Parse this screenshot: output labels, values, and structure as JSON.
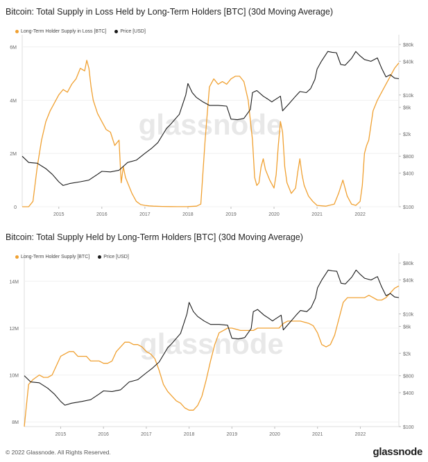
{
  "chart_data": [
    {
      "type": "line",
      "title": "Bitcoin: Total Supply in Loss Held by Long-Term Holders [BTC] (30d Moving Average)",
      "x_ticks": [
        "2015",
        "2016",
        "2017",
        "2018",
        "2019",
        "2020",
        "2021",
        "2022"
      ],
      "x_range": [
        2014.15,
        2022.9
      ],
      "left_axis": {
        "ticks": [
          0,
          2000000,
          4000000,
          6000000
        ],
        "tick_labels": [
          "0",
          "2M",
          "4M",
          "6M"
        ],
        "range": [
          0,
          6200000
        ]
      },
      "right_axis": {
        "scale": "log",
        "ticks": [
          100,
          400,
          800,
          2000,
          6000,
          10000,
          40000,
          80000
        ],
        "tick_labels": [
          "$100",
          "$400",
          "$800",
          "$2k",
          "$6k",
          "$10k",
          "$40k",
          "$80k"
        ],
        "range": [
          100,
          90000
        ]
      },
      "grid": true,
      "legend_position": "top-left",
      "watermark": "glassnode",
      "series": [
        {
          "name": "Long-Term Holder Supply in Loss [BTC]",
          "color": "#f0a030",
          "axis": "left",
          "x": [
            2014.15,
            2014.3,
            2014.4,
            2014.5,
            2014.6,
            2014.7,
            2014.8,
            2014.9,
            2015.0,
            2015.1,
            2015.2,
            2015.3,
            2015.4,
            2015.5,
            2015.6,
            2015.65,
            2015.7,
            2015.75,
            2015.8,
            2015.9,
            2016.0,
            2016.1,
            2016.2,
            2016.3,
            2016.4,
            2016.45,
            2016.5,
            2016.55,
            2016.6,
            2016.7,
            2016.8,
            2016.9,
            2017.0,
            2017.1,
            2017.2,
            2017.4,
            2017.6,
            2017.8,
            2018.0,
            2018.2,
            2018.3,
            2018.4,
            2018.5,
            2018.6,
            2018.7,
            2018.8,
            2018.9,
            2019.0,
            2019.1,
            2019.2,
            2019.3,
            2019.4,
            2019.5,
            2019.55,
            2019.6,
            2019.65,
            2019.7,
            2019.75,
            2019.8,
            2019.9,
            2020.0,
            2020.05,
            2020.1,
            2020.15,
            2020.2,
            2020.25,
            2020.3,
            2020.4,
            2020.5,
            2020.55,
            2020.6,
            2020.65,
            2020.7,
            2020.8,
            2020.9,
            2021.0,
            2021.2,
            2021.4,
            2021.5,
            2021.6,
            2021.7,
            2021.8,
            2021.9,
            2022.0,
            2022.05,
            2022.1,
            2022.15,
            2022.2,
            2022.3,
            2022.4,
            2022.5,
            2022.6,
            2022.7,
            2022.8,
            2022.9
          ],
          "values": [
            0,
            0,
            200000,
            1500000,
            2500000,
            3200000,
            3600000,
            3900000,
            4200000,
            4400000,
            4300000,
            4600000,
            4800000,
            5200000,
            5100000,
            5500000,
            5200000,
            4500000,
            4000000,
            3500000,
            3200000,
            2900000,
            2800000,
            2300000,
            2500000,
            900000,
            1500000,
            1100000,
            900000,
            500000,
            200000,
            80000,
            50000,
            30000,
            20000,
            10000,
            5000,
            3000,
            5000,
            20000,
            100000,
            2500000,
            4500000,
            4800000,
            4600000,
            4700000,
            4600000,
            4800000,
            4900000,
            4900000,
            4700000,
            4000000,
            2500000,
            1100000,
            800000,
            900000,
            1500000,
            1800000,
            1400000,
            1000000,
            700000,
            1200000,
            2300000,
            3200000,
            2800000,
            1500000,
            900000,
            500000,
            700000,
            1300000,
            1800000,
            1200000,
            800000,
            400000,
            200000,
            50000,
            20000,
            100000,
            500000,
            1000000,
            400000,
            100000,
            50000,
            200000,
            800000,
            2000000,
            2300000,
            2500000,
            3600000,
            4000000,
            4300000,
            4600000,
            4900000,
            5200000,
            5400000
          ]
        },
        {
          "name": "Price [USD]",
          "color": "#1a1a1a",
          "axis": "right",
          "x": [
            2014.15,
            2014.3,
            2014.5,
            2014.7,
            2014.85,
            2015.0,
            2015.1,
            2015.25,
            2015.5,
            2015.7,
            2015.9,
            2016.0,
            2016.2,
            2016.4,
            2016.6,
            2016.8,
            2017.0,
            2017.15,
            2017.3,
            2017.5,
            2017.6,
            2017.8,
            2017.95,
            2018.0,
            2018.1,
            2018.2,
            2018.35,
            2018.5,
            2018.7,
            2018.9,
            2019.0,
            2019.15,
            2019.3,
            2019.45,
            2019.5,
            2019.6,
            2019.75,
            2019.85,
            2019.95,
            2020.0,
            2020.15,
            2020.2,
            2020.35,
            2020.5,
            2020.6,
            2020.75,
            2020.85,
            2020.95,
            2021.0,
            2021.1,
            2021.25,
            2021.35,
            2021.45,
            2021.55,
            2021.65,
            2021.8,
            2021.9,
            2022.0,
            2022.1,
            2022.25,
            2022.4,
            2022.5,
            2022.6,
            2022.7,
            2022.8,
            2022.9
          ],
          "values": [
            800,
            620,
            600,
            480,
            380,
            280,
            240,
            260,
            280,
            300,
            380,
            430,
            420,
            450,
            620,
            680,
            900,
            1100,
            1400,
            2500,
            3000,
            4500,
            10000,
            16000,
            11000,
            9000,
            7500,
            6500,
            6500,
            6300,
            3700,
            3600,
            3800,
            5500,
            11000,
            12000,
            9500,
            8500,
            7500,
            8000,
            9500,
            5200,
            7000,
            9500,
            11500,
            11000,
            13000,
            19000,
            29000,
            40000,
            60000,
            58000,
            57000,
            35000,
            34000,
            45000,
            60000,
            50000,
            43000,
            40000,
            46000,
            30000,
            21000,
            23000,
            20000,
            19500
          ]
        }
      ]
    },
    {
      "type": "line",
      "title": "Bitcoin: Total Supply Held by Long-Term Holders [BTC] (30d Moving Average)",
      "x_ticks": [
        "2015",
        "2016",
        "2017",
        "2018",
        "2019",
        "2020",
        "2021",
        "2022"
      ],
      "x_range": [
        2014.15,
        2022.9
      ],
      "left_axis": {
        "ticks": [
          8000000,
          10000000,
          12000000,
          14000000
        ],
        "tick_labels": [
          "8M",
          "10M",
          "12M",
          "14M"
        ],
        "range": [
          7800000,
          14900000
        ]
      },
      "right_axis": {
        "scale": "log",
        "ticks": [
          100,
          400,
          800,
          2000,
          6000,
          10000,
          40000,
          80000
        ],
        "tick_labels": [
          "$100",
          "$400",
          "$800",
          "$2k",
          "$6k",
          "$10k",
          "$40k",
          "$80k"
        ],
        "range": [
          100,
          90000
        ]
      },
      "grid": true,
      "legend_position": "top-left",
      "watermark": "glassnode",
      "series": [
        {
          "name": "Long-Term Holder Supply [BTC]",
          "color": "#f0a030",
          "axis": "left",
          "x": [
            2014.15,
            2014.25,
            2014.35,
            2014.5,
            2014.6,
            2014.7,
            2014.8,
            2014.9,
            2015.0,
            2015.1,
            2015.2,
            2015.3,
            2015.4,
            2015.5,
            2015.6,
            2015.7,
            2015.8,
            2015.9,
            2016.0,
            2016.1,
            2016.2,
            2016.3,
            2016.4,
            2016.5,
            2016.6,
            2016.7,
            2016.8,
            2016.9,
            2017.0,
            2017.1,
            2017.2,
            2017.3,
            2017.4,
            2017.5,
            2017.6,
            2017.7,
            2017.8,
            2017.9,
            2018.0,
            2018.1,
            2018.2,
            2018.3,
            2018.4,
            2018.5,
            2018.6,
            2018.7,
            2018.8,
            2018.9,
            2019.0,
            2019.2,
            2019.4,
            2019.5,
            2019.6,
            2019.8,
            2019.9,
            2020.0,
            2020.1,
            2020.2,
            2020.3,
            2020.5,
            2020.6,
            2020.8,
            2020.9,
            2021.0,
            2021.1,
            2021.2,
            2021.3,
            2021.4,
            2021.5,
            2021.6,
            2021.7,
            2021.8,
            2021.9,
            2022.0,
            2022.1,
            2022.2,
            2022.3,
            2022.4,
            2022.5,
            2022.6,
            2022.7,
            2022.8,
            2022.9
          ],
          "values": [
            7800000,
            9600000,
            9800000,
            10000000,
            9900000,
            9900000,
            10000000,
            10400000,
            10800000,
            10900000,
            11000000,
            11000000,
            10800000,
            10800000,
            10800000,
            10600000,
            10600000,
            10600000,
            10500000,
            10500000,
            10600000,
            11000000,
            11200000,
            11400000,
            11400000,
            11300000,
            11300000,
            11200000,
            11000000,
            10900000,
            10700000,
            10200000,
            9600000,
            9300000,
            9100000,
            8900000,
            8800000,
            8600000,
            8500000,
            8500000,
            8700000,
            9100000,
            9800000,
            10600000,
            11300000,
            11800000,
            11900000,
            12000000,
            12000000,
            11900000,
            11900000,
            11900000,
            12000000,
            12000000,
            12000000,
            12000000,
            12000000,
            12200000,
            12300000,
            12300000,
            12300000,
            12200000,
            12100000,
            11800000,
            11300000,
            11200000,
            11300000,
            11700000,
            12400000,
            13100000,
            13300000,
            13300000,
            13300000,
            13300000,
            13300000,
            13400000,
            13300000,
            13200000,
            13200000,
            13300000,
            13500000,
            13700000,
            13800000
          ]
        },
        {
          "name": "Price [USD]",
          "color": "#1a1a1a",
          "axis": "right",
          "x": [
            2014.15,
            2014.3,
            2014.5,
            2014.7,
            2014.85,
            2015.0,
            2015.1,
            2015.25,
            2015.5,
            2015.7,
            2015.9,
            2016.0,
            2016.2,
            2016.4,
            2016.6,
            2016.8,
            2017.0,
            2017.15,
            2017.3,
            2017.5,
            2017.6,
            2017.8,
            2017.95,
            2018.0,
            2018.1,
            2018.2,
            2018.35,
            2018.5,
            2018.7,
            2018.9,
            2019.0,
            2019.15,
            2019.3,
            2019.45,
            2019.5,
            2019.6,
            2019.75,
            2019.85,
            2019.95,
            2020.0,
            2020.15,
            2020.2,
            2020.35,
            2020.5,
            2020.6,
            2020.75,
            2020.85,
            2020.95,
            2021.0,
            2021.1,
            2021.25,
            2021.35,
            2021.45,
            2021.55,
            2021.65,
            2021.8,
            2021.9,
            2022.0,
            2022.1,
            2022.25,
            2022.4,
            2022.5,
            2022.6,
            2022.7,
            2022.8,
            2022.9
          ],
          "values": [
            800,
            620,
            600,
            480,
            380,
            280,
            240,
            260,
            280,
            300,
            380,
            430,
            420,
            450,
            620,
            680,
            900,
            1100,
            1400,
            2500,
            3000,
            4500,
            10000,
            16000,
            11000,
            9000,
            7500,
            6500,
            6500,
            6300,
            3700,
            3600,
            3800,
            5500,
            11000,
            12000,
            9500,
            8500,
            7500,
            8000,
            9500,
            5200,
            7000,
            9500,
            11500,
            11000,
            13000,
            19000,
            29000,
            40000,
            60000,
            58000,
            57000,
            35000,
            34000,
            45000,
            60000,
            50000,
            43000,
            40000,
            46000,
            30000,
            21000,
            23000,
            20000,
            19500
          ]
        }
      ]
    }
  ],
  "footer": {
    "copyright": "© 2022 Glassnode. All Rights Reserved.",
    "brand": "glassnode"
  }
}
